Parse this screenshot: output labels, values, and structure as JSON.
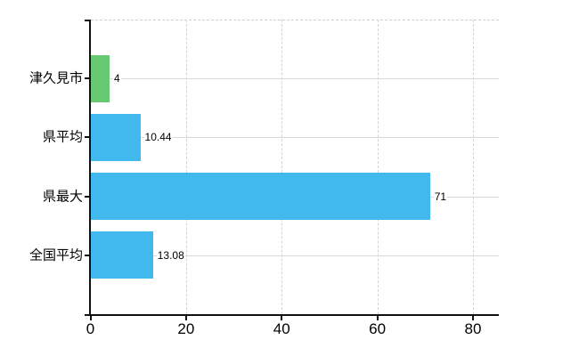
{
  "chart_data": {
    "type": "bar",
    "orientation": "horizontal",
    "title": "",
    "xlabel": "",
    "ylabel": "",
    "categories": [
      "津久見市",
      "県平均",
      "県最大",
      "全国平均"
    ],
    "values": [
      4,
      10.44,
      71,
      13.08
    ],
    "value_labels": [
      "4",
      "10.44",
      "71",
      "13.08"
    ],
    "series_colors": [
      "#68c973",
      "#42b9ee",
      "#42b9ee",
      "#42b9ee"
    ],
    "x_ticks": [
      0,
      20,
      40,
      60,
      80
    ],
    "x_tick_labels": [
      "0",
      "20",
      "40",
      "60",
      "80"
    ],
    "xlim": [
      0,
      85.4
    ],
    "grid": true,
    "grid_horizontal_style": "solid",
    "grid_vertical_style": "dashed",
    "legend": false
  },
  "colors": {
    "highlight_bar": "#68c973",
    "default_bar": "#42b9ee",
    "gridline": "#d9d9d9",
    "axis": "#111111",
    "text": "#000000",
    "background": "#ffffff"
  }
}
